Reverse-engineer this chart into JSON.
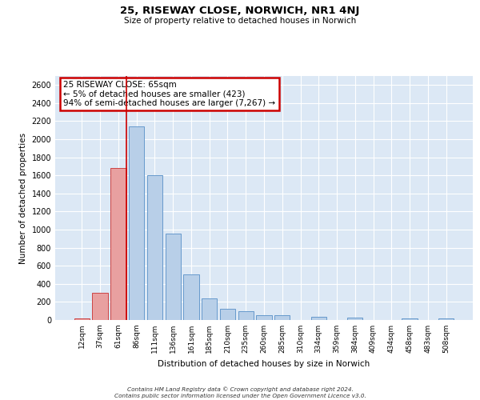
{
  "title": "25, RISEWAY CLOSE, NORWICH, NR1 4NJ",
  "subtitle": "Size of property relative to detached houses in Norwich",
  "xlabel": "Distribution of detached houses by size in Norwich",
  "ylabel": "Number of detached properties",
  "categories": [
    "12sqm",
    "37sqm",
    "61sqm",
    "86sqm",
    "111sqm",
    "136sqm",
    "161sqm",
    "185sqm",
    "210sqm",
    "235sqm",
    "260sqm",
    "285sqm",
    "310sqm",
    "334sqm",
    "359sqm",
    "384sqm",
    "409sqm",
    "434sqm",
    "458sqm",
    "483sqm",
    "508sqm"
  ],
  "values": [
    20,
    300,
    1680,
    2140,
    1600,
    960,
    505,
    240,
    120,
    100,
    50,
    50,
    0,
    35,
    0,
    25,
    0,
    0,
    20,
    0,
    20
  ],
  "bar_color_red": "#e8a0a0",
  "bar_edge_color_red": "#cc4444",
  "bar_color_blue": "#b8cfe8",
  "bar_edge_color_blue": "#6699cc",
  "red_bar_count": 3,
  "annotation_text": "25 RISEWAY CLOSE: 65sqm\n← 5% of detached houses are smaller (423)\n94% of semi-detached houses are larger (7,267) →",
  "annotation_box_color": "#ffffff",
  "annotation_box_edge_color": "#cc0000",
  "vline_color": "#cc0000",
  "background_color": "#dce8f5",
  "grid_color": "#ffffff",
  "ylim": [
    0,
    2700
  ],
  "yticks": [
    0,
    200,
    400,
    600,
    800,
    1000,
    1200,
    1400,
    1600,
    1800,
    2000,
    2200,
    2400,
    2600
  ],
  "footer_line1": "Contains HM Land Registry data © Crown copyright and database right 2024.",
  "footer_line2": "Contains public sector information licensed under the Open Government Licence v3.0."
}
